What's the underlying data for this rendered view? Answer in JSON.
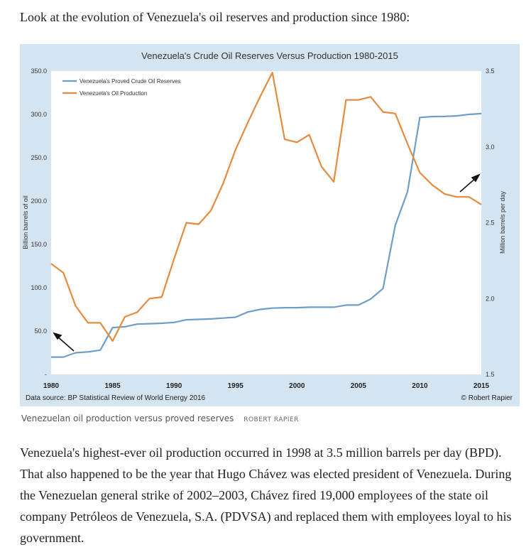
{
  "intro": "Look at the evolution of Venezuela's oil reserves and production since 1980:",
  "caption": {
    "text": "Venezuelan oil production versus proved reserves",
    "credit": "ROBERT RAPIER"
  },
  "body": "Venezuela's highest-ever oil production occurred in 1998 at 3.5 million barrels per day (BPD). That also happened to be the year that Hugo Chávez was elected president of Venezuela. During the Venezuelan general strike of 2002–2003, Chávez fired 19,000 employees of the state oil company Petróleos de Venezuela, S.A. (PDVSA) and replaced them with employees loyal to his government.",
  "chart_data": {
    "type": "line",
    "title": "Venezuela's Crude Oil Reserves Versus Production 1980-2015",
    "ylabel": "Billion barrels of oil",
    "y2label": "Million barrels per day",
    "source": "Data source: BP Statistical Review of World Energy 2016",
    "copyright": "© Robert Rapier",
    "x_ticks": [
      "1980",
      "1985",
      "1990",
      "1995",
      "2000",
      "2005",
      "2010",
      "2015"
    ],
    "y_ticks": [
      "-",
      "50.0",
      "100.0",
      "150.0",
      "200.0",
      "250.0",
      "300.0",
      "350.0"
    ],
    "y2_ticks": [
      "1.5",
      "2.0",
      "2.5",
      "3.0",
      "3.5"
    ],
    "ylim": [
      0,
      350
    ],
    "y2lim": [
      1.5,
      3.5
    ],
    "xlim": [
      1980,
      2015
    ],
    "legend_position": "top-left",
    "grid": false,
    "x": [
      1980,
      1981,
      1982,
      1983,
      1984,
      1985,
      1986,
      1987,
      1988,
      1989,
      1990,
      1991,
      1992,
      1993,
      1994,
      1995,
      1996,
      1997,
      1998,
      1999,
      2000,
      2001,
      2002,
      2003,
      2004,
      2005,
      2006,
      2007,
      2008,
      2009,
      2010,
      2011,
      2012,
      2013,
      2014,
      2015
    ],
    "series": [
      {
        "name": "Venezuela's Proved Crude Oil Reserves",
        "axis": "left",
        "color": "#6e9ec8",
        "values": [
          20,
          20,
          25,
          26,
          28,
          54,
          55,
          58,
          58.5,
          59,
          60,
          63,
          63.5,
          64,
          65,
          66,
          72,
          75,
          76.5,
          77,
          77,
          77.5,
          77.5,
          77.5,
          80,
          80,
          87,
          99,
          172,
          211,
          296.5,
          297.5,
          297.6,
          298.3,
          300,
          300.9
        ]
      },
      {
        "name": "Venezuela's Oil Production",
        "axis": "right",
        "color": "#e38c3f",
        "values": [
          2.23,
          2.17,
          1.95,
          1.84,
          1.84,
          1.72,
          1.88,
          1.91,
          2.0,
          2.01,
          2.26,
          2.5,
          2.49,
          2.58,
          2.76,
          2.98,
          3.16,
          3.33,
          3.49,
          3.05,
          3.03,
          3.08,
          2.87,
          2.77,
          3.31,
          3.31,
          3.33,
          3.23,
          3.22,
          3.02,
          2.83,
          2.75,
          2.69,
          2.67,
          2.67,
          2.62
        ]
      }
    ]
  },
  "colors": {
    "panel_background": "#d5e4f1",
    "plot_background": "#ffffff",
    "axis_text": "#333333"
  }
}
